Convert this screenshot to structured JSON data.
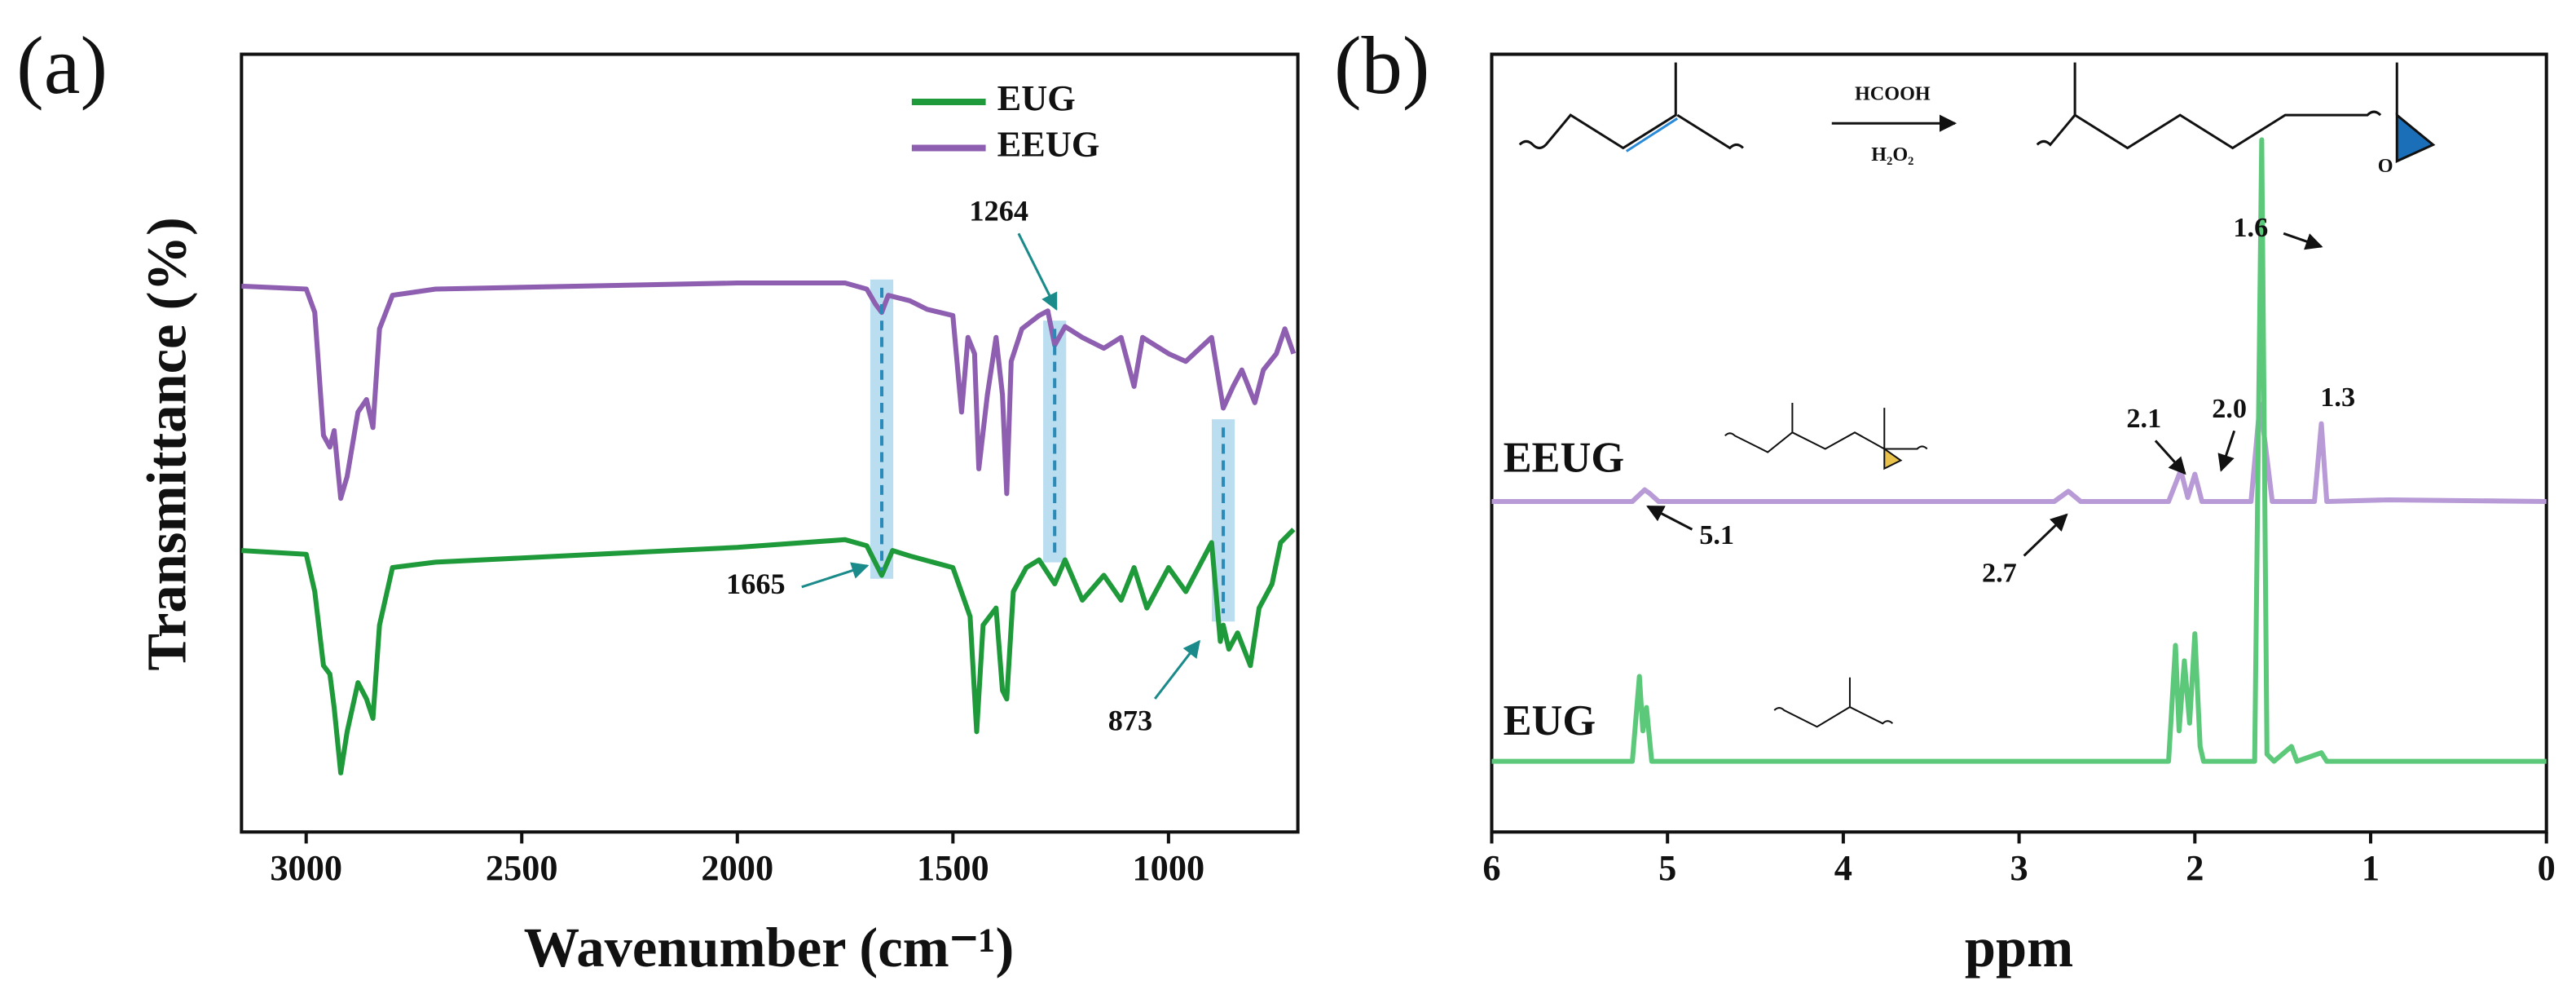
{
  "chart_data": [
    {
      "type": "line",
      "panel": "(a)",
      "xlabel": "Wavenumber (cm⁻¹)",
      "ylabel": "Transmittance (%)",
      "xlim": [
        3150,
        700
      ],
      "xticks": [
        3000,
        2500,
        2000,
        1500,
        1000
      ],
      "ylim": [
        0,
        100
      ],
      "legend": "top-right",
      "annotations": [
        1665,
        1264,
        873
      ],
      "series": [
        {
          "name": "EUG",
          "color": "#1f9a3a",
          "x": [
            3150,
            3000,
            2980,
            2960,
            2945,
            2935,
            2920,
            2905,
            2880,
            2860,
            2845,
            2830,
            2800,
            2700,
            2000,
            1750,
            1700,
            1665,
            1640,
            1600,
            1500,
            1460,
            1445,
            1430,
            1400,
            1385,
            1375,
            1360,
            1330,
            1300,
            1264,
            1240,
            1200,
            1150,
            1110,
            1080,
            1050,
            1000,
            960,
            900,
            880,
            873,
            860,
            840,
            810,
            790,
            760,
            740,
            710
          ],
          "values": [
            36.2,
            35.7,
            30.9,
            21.4,
            20.3,
            16,
            7.6,
            12.9,
            19.2,
            17.1,
            14.6,
            26.6,
            34,
            34.7,
            36.6,
            37.6,
            36.8,
            33,
            36.2,
            35.5,
            34,
            27.7,
            12.9,
            26.6,
            28.8,
            18.2,
            17.1,
            30.9,
            34,
            35,
            31.9,
            35,
            29.8,
            33,
            29.8,
            34,
            28.8,
            34,
            30.9,
            37.2,
            24.5,
            26.6,
            23.5,
            25.6,
            21.4,
            28.8,
            31.9,
            37.2,
            38.9
          ]
        },
        {
          "name": "EEUG",
          "color": "#8e5fb0",
          "x": [
            3150,
            3000,
            2980,
            2960,
            2945,
            2935,
            2920,
            2905,
            2880,
            2860,
            2845,
            2830,
            2800,
            2700,
            2000,
            1750,
            1700,
            1680,
            1665,
            1650,
            1600,
            1560,
            1500,
            1480,
            1465,
            1450,
            1440,
            1420,
            1400,
            1385,
            1375,
            1365,
            1340,
            1300,
            1280,
            1264,
            1240,
            1200,
            1150,
            1110,
            1080,
            1060,
            1000,
            960,
            900,
            873,
            850,
            830,
            800,
            780,
            750,
            730,
            710
          ],
          "values": [
            70.2,
            69.8,
            66.8,
            51,
            49.5,
            51.6,
            42.9,
            45.7,
            54,
            55.6,
            52,
            64.7,
            69,
            69.8,
            70.6,
            70.6,
            69.8,
            67.9,
            66.8,
            69,
            68.3,
            67.2,
            66.4,
            54,
            63.6,
            61.5,
            46.7,
            56.2,
            63.6,
            56.2,
            43.5,
            60.5,
            64.7,
            66.4,
            67,
            62.6,
            65,
            63.6,
            62.2,
            63.6,
            57.3,
            63.6,
            61.5,
            60.5,
            63.6,
            54.5,
            57.3,
            59.4,
            55.2,
            59.4,
            61.5,
            64.7,
            61.5
          ]
        }
      ]
    },
    {
      "type": "line",
      "panel": "(b)",
      "xlabel": "ppm",
      "xlim": [
        6,
        0
      ],
      "xticks": [
        6,
        5,
        4,
        3,
        2,
        1,
        0
      ],
      "ylim": [
        0,
        100
      ],
      "scheme": {
        "reagent": "HCOOH",
        "oxidant": "H₂O₂",
        "atom": "O"
      },
      "annotations": [
        1.6,
        2.1,
        {
          "value": 2,
          "label": "2.0"
        },
        1.3,
        5.1,
        2.7
      ],
      "series": [
        {
          "name": "EEUG",
          "color": "#b79ad6",
          "x": [
            6,
            5.2,
            5.13,
            5.1,
            5.05,
            2.8,
            2.72,
            2.65,
            2.15,
            2.08,
            2.04,
            2.0,
            1.96,
            1.68,
            1.63,
            1.6,
            1.56,
            1.32,
            1.28,
            1.25,
            0.9,
            0
          ],
          "values": [
            42.5,
            42.5,
            44,
            43.5,
            42.5,
            42.5,
            43.8,
            42.5,
            42.5,
            46.5,
            43,
            46,
            42.5,
            42.5,
            55,
            50,
            42.5,
            42.5,
            52.5,
            42.5,
            42.7,
            42.5
          ]
        },
        {
          "name": "EUG",
          "color": "#5cc97a",
          "x": [
            6,
            5.2,
            5.16,
            5.14,
            5.12,
            5.09,
            2.15,
            2.11,
            2.09,
            2.06,
            2.03,
            2.0,
            1.97,
            1.95,
            1.66,
            1.62,
            1.59,
            1.55,
            1.45,
            1.42,
            1.28,
            1.25,
            0
          ],
          "values": [
            9.1,
            9.1,
            20,
            13,
            16,
            9.1,
            9.1,
            24,
            13,
            22,
            14,
            25.5,
            11,
            9.1,
            9.1,
            89,
            10,
            9.1,
            11,
            9.1,
            10.2,
            9.1,
            9.1
          ]
        }
      ]
    }
  ]
}
